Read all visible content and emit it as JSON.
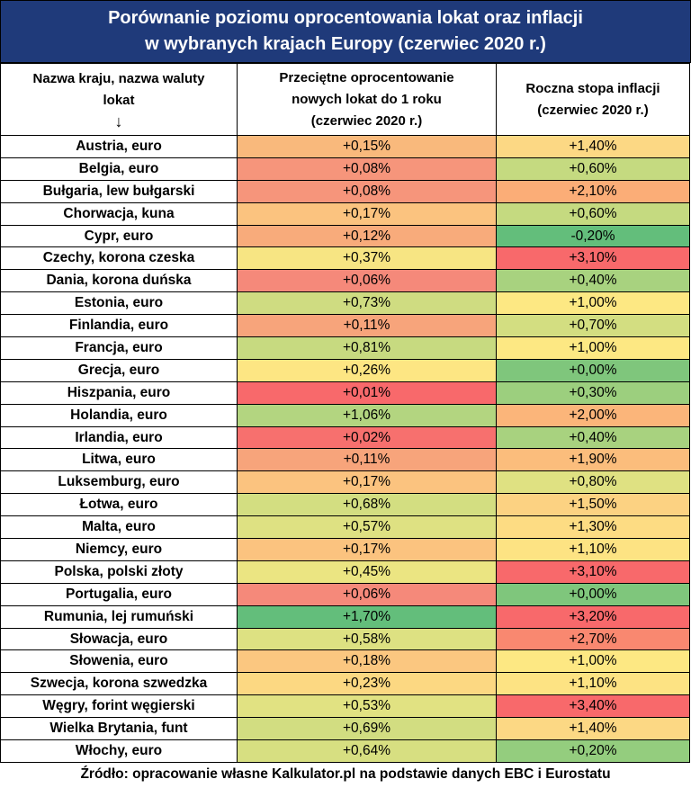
{
  "title": {
    "line1": "Porównanie poziomu oprocentowania lokat oraz inflacji",
    "line2": "w wybranych krajach Europy (czerwiec 2020 r.)"
  },
  "headers": {
    "country": {
      "line1": "Nazwa kraju, nazwa waluty",
      "line2": "lokat",
      "arrow": "↓"
    },
    "deposit": {
      "line1": "Przeciętne oprocentowanie",
      "line2": "nowych lokat do 1 roku",
      "line3": "(czerwiec 2020 r.)"
    },
    "inflation": {
      "line1": "Roczna stopa inflacji",
      "line2": "(czerwiec 2020 r.)"
    }
  },
  "rows": [
    {
      "country": "Austria, euro",
      "deposit": "+0,15%",
      "deposit_color": "#f9b97c",
      "inflation": "+1,40%",
      "inflation_color": "#fcd884"
    },
    {
      "country": "Belgia, euro",
      "deposit": "+0,08%",
      "deposit_color": "#f6957b",
      "inflation": "+0,60%",
      "inflation_color": "#c5da80"
    },
    {
      "country": "Bułgaria, lew bułgarski",
      "deposit": "+0,08%",
      "deposit_color": "#f6957b",
      "inflation": "+2,10%",
      "inflation_color": "#fbad77"
    },
    {
      "country": "Chorwacja, kuna",
      "deposit": "+0,17%",
      "deposit_color": "#fbc37f",
      "inflation": "+0,60%",
      "inflation_color": "#c5da80"
    },
    {
      "country": "Cypr, euro",
      "deposit": "+0,12%",
      "deposit_color": "#f8ab7b",
      "inflation": "-0,20%",
      "inflation_color": "#63be7b"
    },
    {
      "country": "Czechy, korona czeska",
      "deposit": "+0,37%",
      "deposit_color": "#f7e583",
      "inflation": "+3,10%",
      "inflation_color": "#f8696b"
    },
    {
      "country": "Dania, korona duńska",
      "deposit": "+0,06%",
      "deposit_color": "#f5897a",
      "inflation": "+0,40%",
      "inflation_color": "#a8d27f"
    },
    {
      "country": "Estonia, euro",
      "deposit": "+0,73%",
      "deposit_color": "#cfdc81",
      "inflation": "+1,00%",
      "inflation_color": "#fde883"
    },
    {
      "country": "Finlandia, euro",
      "deposit": "+0,11%",
      "deposit_color": "#f7a47b",
      "inflation": "+0,70%",
      "inflation_color": "#d3de81"
    },
    {
      "country": "Francja, euro",
      "deposit": "+0,81%",
      "deposit_color": "#c7da80",
      "inflation": "+1,00%",
      "inflation_color": "#fde883"
    },
    {
      "country": "Grecja, euro",
      "deposit": "+0,26%",
      "deposit_color": "#fde683",
      "inflation": "+0,00%",
      "inflation_color": "#7fc67c"
    },
    {
      "country": "Hiszpania, euro",
      "deposit": "+0,01%",
      "deposit_color": "#f8696b",
      "inflation": "+0,30%",
      "inflation_color": "#9ccf7e"
    },
    {
      "country": "Holandia, euro",
      "deposit": "+1,06%",
      "deposit_color": "#b3d580",
      "inflation": "+2,00%",
      "inflation_color": "#fbb57a"
    },
    {
      "country": "Irlandia, euro",
      "deposit": "+0,02%",
      "deposit_color": "#f7706e",
      "inflation": "+0,40%",
      "inflation_color": "#a8d27f"
    },
    {
      "country": "Litwa, euro",
      "deposit": "+0,11%",
      "deposit_color": "#f7a47b",
      "inflation": "+1,90%",
      "inflation_color": "#fbbd7c"
    },
    {
      "country": "Luksemburg, euro",
      "deposit": "+0,17%",
      "deposit_color": "#fbc37f",
      "inflation": "+0,80%",
      "inflation_color": "#dfe182"
    },
    {
      "country": "Łotwa, euro",
      "deposit": "+0,68%",
      "deposit_color": "#d3de81",
      "inflation": "+1,50%",
      "inflation_color": "#fcd282"
    },
    {
      "country": "Malta, euro",
      "deposit": "+0,57%",
      "deposit_color": "#dee182",
      "inflation": "+1,30%",
      "inflation_color": "#fddc83"
    },
    {
      "country": "Niemcy, euro",
      "deposit": "+0,17%",
      "deposit_color": "#fbc37f",
      "inflation": "+1,10%",
      "inflation_color": "#fde383"
    },
    {
      "country": "Polska, polski złoty",
      "deposit": "+0,45%",
      "deposit_color": "#ebe582",
      "inflation": "+3,10%",
      "inflation_color": "#f8696b"
    },
    {
      "country": "Portugalia, euro",
      "deposit": "+0,06%",
      "deposit_color": "#f5897a",
      "inflation": "+0,00%",
      "inflation_color": "#7fc67c"
    },
    {
      "country": "Rumunia, lej rumuński",
      "deposit": "+1,70%",
      "deposit_color": "#63be7b",
      "inflation": "+3,20%",
      "inflation_color": "#f8696b"
    },
    {
      "country": "Słowacja, euro",
      "deposit": "+0,58%",
      "deposit_color": "#dde182",
      "inflation": "+2,70%",
      "inflation_color": "#f98870"
    },
    {
      "country": "Słowenia, euro",
      "deposit": "+0,18%",
      "deposit_color": "#fbc780",
      "inflation": "+1,00%",
      "inflation_color": "#fde883"
    },
    {
      "country": "Szwecja, korona szwedzka",
      "deposit": "+0,23%",
      "deposit_color": "#fcd882",
      "inflation": "+1,10%",
      "inflation_color": "#fde383"
    },
    {
      "country": "Węgry, forint węgierski",
      "deposit": "+0,53%",
      "deposit_color": "#e1e282",
      "inflation": "+3,40%",
      "inflation_color": "#f8696b"
    },
    {
      "country": "Wielka Brytania, funt",
      "deposit": "+0,69%",
      "deposit_color": "#d2dd81",
      "inflation": "+1,40%",
      "inflation_color": "#fcd884"
    },
    {
      "country": "Włochy, euro",
      "deposit": "+0,64%",
      "deposit_color": "#d7df81",
      "inflation": "+0,20%",
      "inflation_color": "#94cd7e"
    }
  ],
  "source": "Źródło: opracowanie własne Kalkulator.pl na podstawie danych EBC i Eurostatu"
}
